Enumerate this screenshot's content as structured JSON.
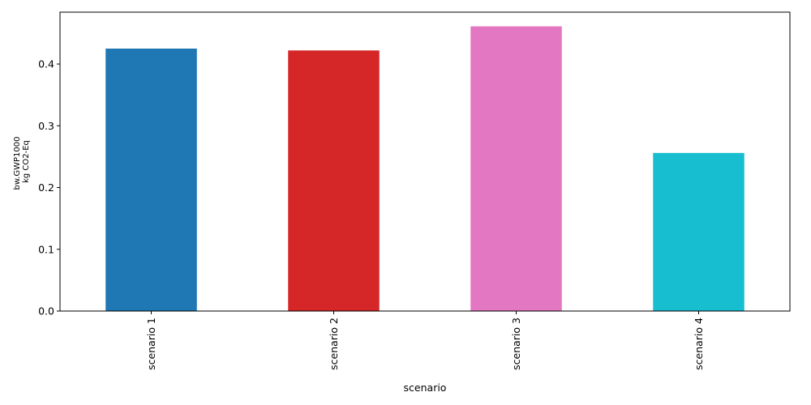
{
  "chart_data": {
    "type": "bar",
    "categories": [
      "scenario 1",
      "scenario 2",
      "scenario 3",
      "scenario 4"
    ],
    "values": [
      0.425,
      0.422,
      0.461,
      0.256
    ],
    "colors": [
      "#1f77b4",
      "#d62728",
      "#e377c2",
      "#17becf"
    ],
    "xlabel": "scenario",
    "ylabel_lines": [
      "bw.GWP1000",
      "kg CO2-Eq"
    ],
    "ylim": [
      0,
      0.484
    ],
    "yticks": [
      0.0,
      0.1,
      0.2,
      0.3,
      0.4
    ],
    "ytick_labels": [
      "0.0",
      "0.1",
      "0.2",
      "0.3",
      "0.4"
    ],
    "grid": false,
    "legend": "none"
  }
}
